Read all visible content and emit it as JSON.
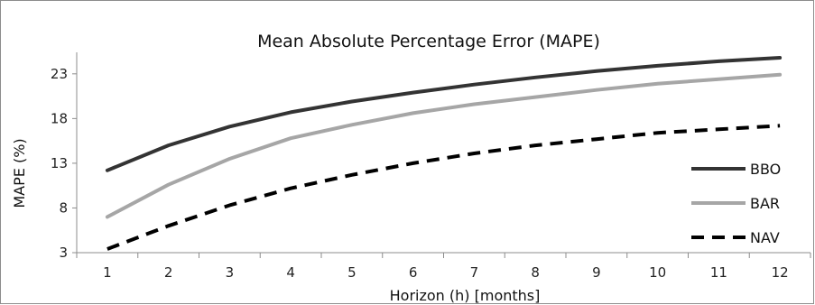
{
  "chart_data": {
    "type": "line",
    "title": "Mean Absolute Percentage Error (MAPE)",
    "xlabel": "Horizon (h) [months]",
    "ylabel": "MAPE (%)",
    "x": [
      1,
      2,
      3,
      4,
      5,
      6,
      7,
      8,
      9,
      10,
      11,
      12
    ],
    "xticks": [
      "1",
      "2",
      "3",
      "4",
      "5",
      "6",
      "7",
      "8",
      "9",
      "10",
      "11",
      "12"
    ],
    "yticks": [
      "3",
      "8",
      "13",
      "18",
      "23"
    ],
    "ylim": [
      3,
      25
    ],
    "grid": false,
    "legend_position": "right",
    "series": [
      {
        "name": "BBO",
        "color": "#333333",
        "dash": "solid",
        "values": [
          12.2,
          15.0,
          17.1,
          18.7,
          19.9,
          20.9,
          21.8,
          22.6,
          23.3,
          23.9,
          24.4,
          24.8
        ]
      },
      {
        "name": "BAR",
        "color": "#a6a6a6",
        "dash": "solid",
        "values": [
          7.0,
          10.6,
          13.5,
          15.8,
          17.3,
          18.6,
          19.6,
          20.4,
          21.2,
          21.9,
          22.4,
          22.9
        ]
      },
      {
        "name": "NAV",
        "color": "#000000",
        "dash": "dashed",
        "values": [
          3.4,
          6.0,
          8.3,
          10.2,
          11.7,
          13.0,
          14.1,
          15.0,
          15.7,
          16.4,
          16.8,
          17.2
        ]
      }
    ]
  }
}
